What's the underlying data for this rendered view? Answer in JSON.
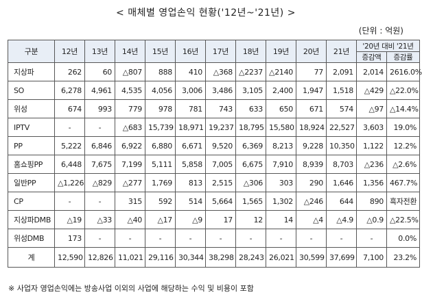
{
  "title": "< 매체별 영업손익 현황('12년~'21년) >",
  "unit": "(단위 : 억원)",
  "headers": {
    "category": "구분",
    "years": [
      "12년",
      "13년",
      "14년",
      "15년",
      "16년",
      "17년",
      "18년",
      "19년",
      "20년",
      "21년"
    ],
    "comparison": "'20년 대비 '21년",
    "change_amount": "증감액",
    "change_rate": "증감률"
  },
  "rows": [
    {
      "label": "지상파",
      "values": [
        "262",
        "60",
        "△807",
        "888",
        "410",
        "△368",
        "△2237",
        "△2140",
        "77",
        "2,091",
        "2,014",
        "2616.0%"
      ]
    },
    {
      "label": "SO",
      "values": [
        "6,278",
        "4,961",
        "4,535",
        "4,056",
        "3,006",
        "3,486",
        "3,105",
        "2,400",
        "1,947",
        "1,518",
        "△429",
        "△22.0%"
      ]
    },
    {
      "label": "위성",
      "values": [
        "674",
        "993",
        "779",
        "978",
        "781",
        "743",
        "633",
        "650",
        "671",
        "574",
        "△97",
        "△14.4%"
      ]
    },
    {
      "label": "IPTV",
      "values": [
        "-",
        "-",
        "△683",
        "15,739",
        "18,971",
        "19,237",
        "18,795",
        "15,580",
        "18,924",
        "22,527",
        "3,603",
        "19.0%"
      ]
    },
    {
      "label": "PP",
      "values": [
        "5,222",
        "6,846",
        "6,922",
        "6,880",
        "6,671",
        "9,520",
        "6,369",
        "8,213",
        "9,228",
        "10,350",
        "1,122",
        "12.2%"
      ]
    },
    {
      "label": "홈쇼핑PP",
      "values": [
        "6,448",
        "7,675",
        "7,199",
        "5,111",
        "5,858",
        "7,005",
        "6,675",
        "7,910",
        "8,939",
        "8,703",
        "△236",
        "△2.6%"
      ]
    },
    {
      "label": "일반PP",
      "values": [
        "△1,226",
        "△829",
        "△277",
        "1,769",
        "813",
        "2,515",
        "△306",
        "303",
        "290",
        "1,646",
        "1,356",
        "467.7%"
      ]
    },
    {
      "label": "CP",
      "values": [
        "-",
        "-",
        "315",
        "592",
        "514",
        "5,664",
        "1,565",
        "1,302",
        "△246",
        "644",
        "890",
        "흑자전환"
      ]
    },
    {
      "label": "지상파DMB",
      "values": [
        "△19",
        "△33",
        "△40",
        "△17",
        "△9",
        "17",
        "12",
        "14",
        "△4",
        "△4.9",
        "△0.9",
        "△22.5%"
      ]
    },
    {
      "label": "위성DMB",
      "values": [
        "173",
        "-",
        "-",
        "-",
        "-",
        "-",
        "-",
        "-",
        "-",
        "-",
        "-",
        "0.0%"
      ]
    },
    {
      "label": "계",
      "values": [
        "12,590",
        "12,826",
        "11,021",
        "29,116",
        "30,344",
        "38,298",
        "28,243",
        "26,021",
        "30,599",
        "37,699",
        "7,100",
        "23.2%"
      ]
    }
  ],
  "note": "※ 사업자 영업손익에는 방송사업 이외의 사업에 해당하는 수익 및 비용이 포함"
}
